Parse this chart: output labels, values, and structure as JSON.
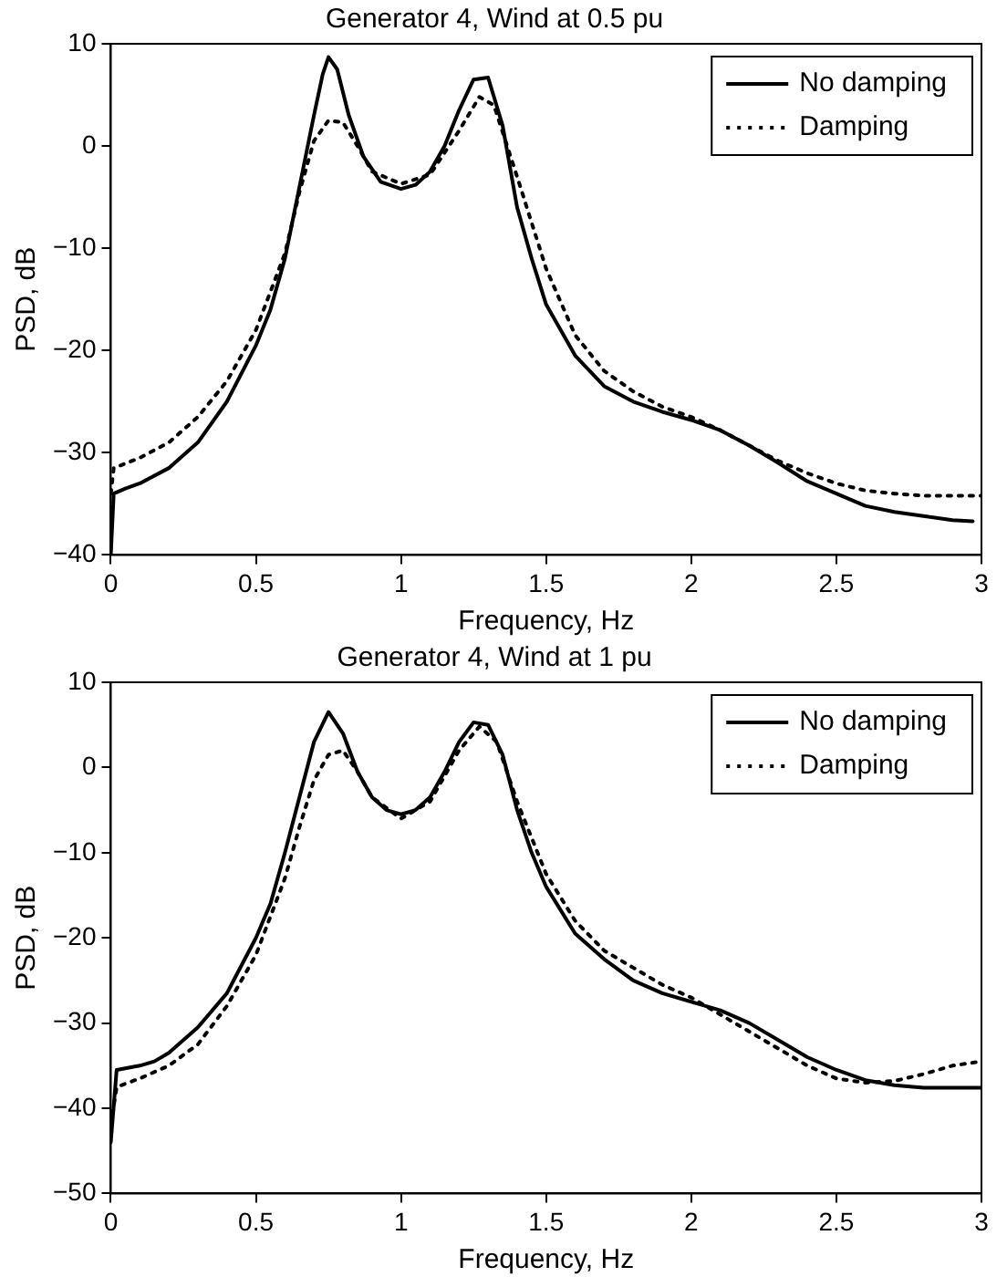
{
  "chart_data": [
    {
      "type": "line",
      "title": "Generator 4, Wind at 0.5 pu",
      "xlabel": "Frequency, Hz",
      "ylabel": "PSD, dB",
      "xlim": [
        0,
        3
      ],
      "xticks": [
        0,
        0.5,
        1,
        1.5,
        2,
        2.5,
        3
      ],
      "ylim": [
        -40,
        10
      ],
      "yticks": [
        -40,
        -30,
        -20,
        -10,
        0,
        10
      ],
      "grid": false,
      "legend": "top right",
      "marker": "none",
      "series": [
        {
          "name": "No damping",
          "color": "#000000",
          "line_style": "solid",
          "x": [
            0,
            0.01,
            0.05,
            0.1,
            0.2,
            0.3,
            0.4,
            0.5,
            0.55,
            0.6,
            0.65,
            0.7,
            0.73,
            0.75,
            0.78,
            0.82,
            0.87,
            0.93,
            1.0,
            1.05,
            1.1,
            1.15,
            1.2,
            1.25,
            1.3,
            1.35,
            1.4,
            1.45,
            1.5,
            1.6,
            1.7,
            1.8,
            1.9,
            2.0,
            2.1,
            2.2,
            2.3,
            2.4,
            2.5,
            2.6,
            2.7,
            2.8,
            2.9,
            2.97
          ],
          "values": [
            -40,
            -34,
            -33.5,
            -33,
            -31.5,
            -29,
            -25,
            -19.5,
            -16,
            -11,
            -4,
            3,
            7,
            8.7,
            7.5,
            3,
            -1,
            -3.5,
            -4.2,
            -3.8,
            -2.5,
            0,
            3.5,
            6.5,
            6.7,
            2,
            -6,
            -11,
            -15.5,
            -20.5,
            -23.5,
            -25,
            -26,
            -26.8,
            -27.8,
            -29.3,
            -31,
            -32.8,
            -34,
            -35.2,
            -35.8,
            -36.2,
            -36.6,
            -36.7
          ]
        },
        {
          "name": "Damping",
          "color": "#000000",
          "line_style": "dotted",
          "x": [
            0,
            0.01,
            0.1,
            0.2,
            0.3,
            0.4,
            0.5,
            0.6,
            0.65,
            0.7,
            0.75,
            0.8,
            0.85,
            0.9,
            1.0,
            1.1,
            1.2,
            1.27,
            1.32,
            1.4,
            1.5,
            1.6,
            1.7,
            1.8,
            1.9,
            2.0,
            2.1,
            2.2,
            2.3,
            2.4,
            2.5,
            2.6,
            2.7,
            2.8,
            3.0
          ],
          "values": [
            -34,
            -31.5,
            -30.5,
            -29,
            -26.5,
            -23,
            -18,
            -10.5,
            -4.5,
            0.5,
            2.5,
            2.3,
            0,
            -2.5,
            -3.7,
            -2.8,
            1.5,
            4.8,
            4,
            -3,
            -12,
            -18.5,
            -22,
            -24,
            -25.5,
            -26.5,
            -27.8,
            -29.3,
            -30.8,
            -32,
            -33,
            -33.7,
            -34,
            -34.2,
            -34.2
          ]
        }
      ]
    },
    {
      "type": "line",
      "title": "Generator 4, Wind at 1 pu",
      "xlabel": "Frequency, Hz",
      "ylabel": "PSD, dB",
      "xlim": [
        0,
        3
      ],
      "xticks": [
        0,
        0.5,
        1,
        1.5,
        2,
        2.5,
        3
      ],
      "ylim": [
        -50,
        10
      ],
      "yticks": [
        -50,
        -40,
        -30,
        -20,
        -10,
        0,
        10
      ],
      "grid": false,
      "legend": "top right",
      "marker": "none",
      "series": [
        {
          "name": "No damping",
          "color": "#000000",
          "line_style": "solid",
          "x": [
            0,
            0.02,
            0.1,
            0.15,
            0.2,
            0.3,
            0.4,
            0.5,
            0.55,
            0.6,
            0.65,
            0.7,
            0.75,
            0.8,
            0.85,
            0.9,
            0.95,
            1.0,
            1.05,
            1.1,
            1.15,
            1.2,
            1.25,
            1.3,
            1.35,
            1.4,
            1.45,
            1.5,
            1.6,
            1.7,
            1.8,
            1.9,
            2.0,
            2.1,
            2.2,
            2.3,
            2.4,
            2.5,
            2.6,
            2.7,
            2.8,
            3.0
          ],
          "values": [
            -44,
            -35.5,
            -35,
            -34.5,
            -33.5,
            -30.5,
            -26.5,
            -20,
            -16,
            -10,
            -3.5,
            3,
            6.5,
            4,
            -0.5,
            -3.5,
            -5,
            -5.5,
            -5,
            -3.5,
            -0.5,
            3,
            5.3,
            5,
            1.5,
            -5,
            -10,
            -14,
            -19.5,
            -22.5,
            -25,
            -26.5,
            -27.5,
            -28.5,
            -30,
            -32,
            -34,
            -35.5,
            -36.7,
            -37.3,
            -37.6,
            -37.6
          ]
        },
        {
          "name": "Damping",
          "color": "#000000",
          "line_style": "dotted",
          "x": [
            0,
            0.02,
            0.1,
            0.2,
            0.3,
            0.4,
            0.5,
            0.6,
            0.65,
            0.7,
            0.75,
            0.8,
            0.85,
            0.9,
            1.0,
            1.1,
            1.2,
            1.27,
            1.33,
            1.4,
            1.5,
            1.6,
            1.7,
            1.8,
            1.9,
            2.0,
            2.1,
            2.2,
            2.3,
            2.4,
            2.5,
            2.6,
            2.7,
            2.8,
            2.9,
            3.0
          ],
          "values": [
            -42,
            -37.5,
            -36.5,
            -35,
            -32.5,
            -28,
            -22,
            -13,
            -7,
            -1.5,
            1.5,
            2,
            -0.5,
            -3.5,
            -6,
            -4,
            2,
            4.8,
            3,
            -4,
            -12.5,
            -18,
            -21.5,
            -23.5,
            -25.5,
            -27,
            -29,
            -31,
            -33,
            -35,
            -36.5,
            -37,
            -36.8,
            -36,
            -35,
            -34.5
          ]
        }
      ]
    }
  ]
}
